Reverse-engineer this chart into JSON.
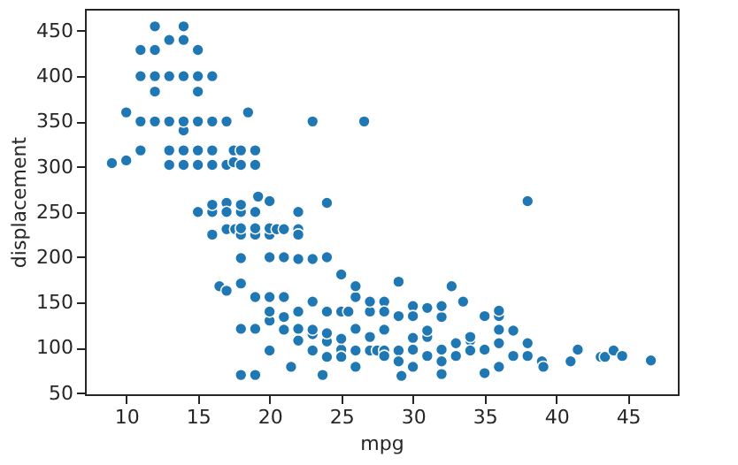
{
  "chart_data": {
    "type": "scatter",
    "xlabel": "mpg",
    "ylabel": "displacement",
    "xlim": [
      7.12,
      48.48
    ],
    "ylim": [
      48.65,
      474.35
    ],
    "xticks": [
      10,
      15,
      20,
      25,
      30,
      35,
      40,
      45
    ],
    "yticks": [
      50,
      100,
      150,
      200,
      250,
      300,
      350,
      400,
      450
    ],
    "grid": false,
    "marker": "circle",
    "series": [
      {
        "color": "#1f77b4",
        "x": [
          9,
          10,
          10,
          11,
          11,
          11,
          11,
          12,
          12,
          12,
          12,
          12,
          13,
          13,
          13,
          13,
          13,
          14,
          14,
          14,
          14,
          14,
          14,
          14,
          15,
          15,
          15,
          15,
          15,
          15,
          15,
          16,
          16,
          16,
          16,
          16,
          16,
          16,
          17,
          17,
          17,
          17,
          17,
          17.5,
          17.5,
          17.6,
          18,
          18,
          18,
          18,
          18,
          18,
          18.5,
          19,
          19,
          19,
          19,
          19,
          19.2,
          20,
          20,
          20,
          20,
          20.5,
          21,
          21,
          22,
          22,
          22,
          22,
          23,
          23,
          24,
          26.6,
          24,
          16.5,
          17,
          18,
          18,
          18,
          19,
          18,
          19,
          19,
          20,
          20,
          20,
          20,
          21,
          21,
          21,
          21.5,
          22,
          22,
          22,
          23,
          23,
          23,
          23,
          23.7,
          24,
          24,
          24,
          24,
          25,
          25,
          25,
          25,
          25,
          25.5,
          26,
          26,
          26,
          26,
          26,
          27,
          27,
          27,
          27,
          27.5,
          28,
          28,
          28,
          28,
          28,
          29,
          29,
          29,
          29,
          29.2,
          30,
          30,
          30,
          30,
          30,
          31,
          31,
          31,
          31,
          32,
          32,
          32,
          32,
          32,
          32.7,
          33,
          33,
          33.5,
          34,
          34,
          34,
          35,
          35,
          35,
          36,
          36,
          36,
          36,
          36,
          37,
          37,
          38,
          38,
          38,
          39,
          39.1,
          41,
          41.5,
          43.1,
          43.4,
          44,
          44.6,
          46.6
        ],
        "values": [
          304,
          307,
          360,
          318,
          350,
          400,
          429,
          350,
          383,
          400,
          429,
          455,
          302,
          318,
          350,
          400,
          440,
          302,
          318,
          340,
          350,
          400,
          440,
          455,
          250,
          302,
          318,
          350,
          383,
          400,
          429,
          350,
          250,
          258,
          302,
          318,
          400,
          225,
          231,
          260,
          250,
          302,
          350,
          305,
          318,
          231,
          225,
          232,
          250,
          258,
          302,
          318,
          360,
          225,
          232,
          250,
          302,
          318,
          267,
          225,
          232,
          262,
          200,
          231,
          200,
          231,
          231,
          225,
          250,
          198,
          350,
          198,
          200,
          350,
          260,
          168,
          163,
          171,
          199,
          70,
          70,
          121,
          121,
          156,
          97,
          130,
          140,
          156,
          156,
          120,
          134,
          79,
          140,
          108,
          121,
          97,
          115,
          120,
          151,
          70,
          90,
          107,
          116,
          140,
          98,
          90,
          110,
          140,
          181,
          140,
          97,
          79,
          121,
          156,
          168,
          97,
          112,
          140,
          151,
          97,
          97,
          91,
          120,
          151,
          140,
          97,
          85,
          135,
          173,
          69,
          98,
          79,
          111,
          146,
          135,
          91,
          112,
          119,
          144,
          134,
          85,
          98,
          146,
          71,
          168,
          105,
          91,
          151,
          108,
          97,
          112,
          72,
          135,
          98,
          79,
          105,
          120,
          135,
          141,
          91,
          119,
          105,
          91,
          262,
          85,
          79,
          85,
          98,
          90,
          90,
          97,
          91,
          86
        ]
      }
    ]
  }
}
